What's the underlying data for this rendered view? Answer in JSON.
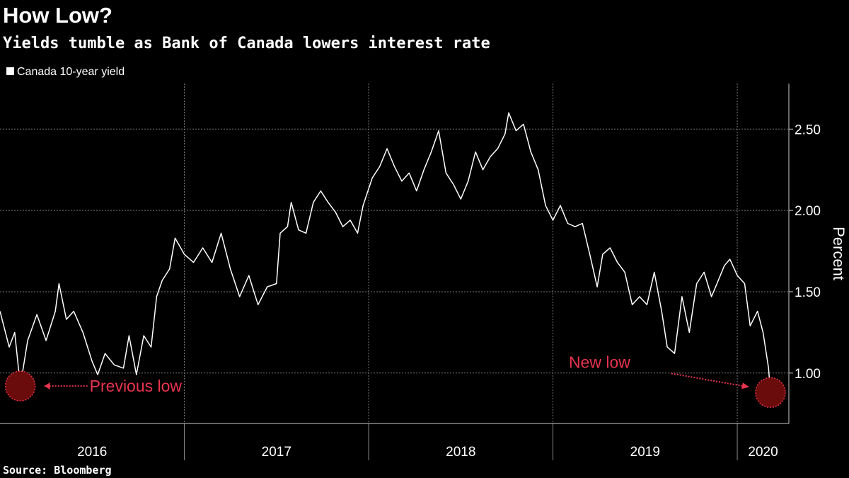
{
  "chart_data": {
    "type": "line",
    "title": "How Low?",
    "subtitle": "Yields tumble as Bank of Canada lowers interest rate",
    "source": "Source: Bloomberg",
    "y_label": "Percent",
    "annotations": [
      "Previous low",
      "New low"
    ],
    "series": [
      {
        "name": "Canada 10-year yield",
        "color": "#ffffff",
        "x": [
          2016.0,
          2016.05,
          2016.08,
          2016.11,
          2016.15,
          2016.2,
          2016.25,
          2016.3,
          2016.32,
          2016.36,
          2016.4,
          2016.45,
          2016.5,
          2016.53,
          2016.57,
          2016.62,
          2016.67,
          2016.7,
          2016.74,
          2016.78,
          2016.82,
          2016.85,
          2016.88,
          2016.92,
          2016.95,
          2017.0,
          2017.05,
          2017.1,
          2017.15,
          2017.2,
          2017.25,
          2017.3,
          2017.35,
          2017.4,
          2017.45,
          2017.5,
          2017.52,
          2017.56,
          2017.58,
          2017.62,
          2017.66,
          2017.7,
          2017.74,
          2017.78,
          2017.82,
          2017.86,
          2017.9,
          2017.94,
          2017.97,
          2018.02,
          2018.06,
          2018.1,
          2018.14,
          2018.18,
          2018.22,
          2018.26,
          2018.3,
          2018.34,
          2018.38,
          2018.42,
          2018.46,
          2018.5,
          2018.54,
          2018.58,
          2018.62,
          2018.66,
          2018.7,
          2018.74,
          2018.76,
          2018.8,
          2018.84,
          2018.88,
          2018.92,
          2018.96,
          2019.0,
          2019.04,
          2019.08,
          2019.12,
          2019.16,
          2019.2,
          2019.24,
          2019.27,
          2019.31,
          2019.35,
          2019.39,
          2019.43,
          2019.47,
          2019.51,
          2019.55,
          2019.59,
          2019.62,
          2019.66,
          2019.7,
          2019.74,
          2019.78,
          2019.82,
          2019.86,
          2019.89,
          2019.93,
          2019.96,
          2020.0,
          2020.04,
          2020.07,
          2020.11,
          2020.14,
          2020.17,
          2020.18
        ],
        "values": [
          1.38,
          1.16,
          1.25,
          0.92,
          1.2,
          1.36,
          1.2,
          1.38,
          1.55,
          1.33,
          1.38,
          1.25,
          1.07,
          0.99,
          1.12,
          1.05,
          1.03,
          1.23,
          0.99,
          1.23,
          1.16,
          1.47,
          1.57,
          1.64,
          1.83,
          1.73,
          1.68,
          1.77,
          1.68,
          1.86,
          1.64,
          1.47,
          1.6,
          1.42,
          1.53,
          1.55,
          1.86,
          1.9,
          2.05,
          1.88,
          1.86,
          2.05,
          2.12,
          2.05,
          1.99,
          1.9,
          1.94,
          1.86,
          2.03,
          2.2,
          2.27,
          2.38,
          2.27,
          2.18,
          2.23,
          2.12,
          2.25,
          2.36,
          2.49,
          2.23,
          2.16,
          2.07,
          2.18,
          2.36,
          2.25,
          2.33,
          2.38,
          2.47,
          2.6,
          2.49,
          2.53,
          2.36,
          2.25,
          2.03,
          1.94,
          2.03,
          1.92,
          1.9,
          1.92,
          1.73,
          1.53,
          1.73,
          1.77,
          1.68,
          1.62,
          1.42,
          1.47,
          1.42,
          1.62,
          1.38,
          1.16,
          1.12,
          1.47,
          1.25,
          1.55,
          1.62,
          1.47,
          1.55,
          1.66,
          1.7,
          1.6,
          1.55,
          1.29,
          1.38,
          1.25,
          1.03,
          0.88
        ]
      }
    ],
    "xlim": [
      2016.0,
      2020.28
    ],
    "xticks": [
      {
        "value": 2016.5,
        "label": "2016"
      },
      {
        "value": 2017.5,
        "label": "2017"
      },
      {
        "value": 2018.5,
        "label": "2018"
      },
      {
        "value": 2019.5,
        "label": "2019"
      },
      {
        "value": 2020.14,
        "label": "2020"
      }
    ],
    "year_boundaries": [
      2017,
      2018,
      2019,
      2020
    ],
    "ylim": [
      0.69,
      2.78
    ],
    "yticks": [
      {
        "value": 1.0,
        "label": "1.00"
      },
      {
        "value": 1.5,
        "label": "1.50"
      },
      {
        "value": 2.0,
        "label": "2.00"
      },
      {
        "value": 2.5,
        "label": "2.50"
      }
    ],
    "grid": true,
    "legend": "top-left"
  }
}
